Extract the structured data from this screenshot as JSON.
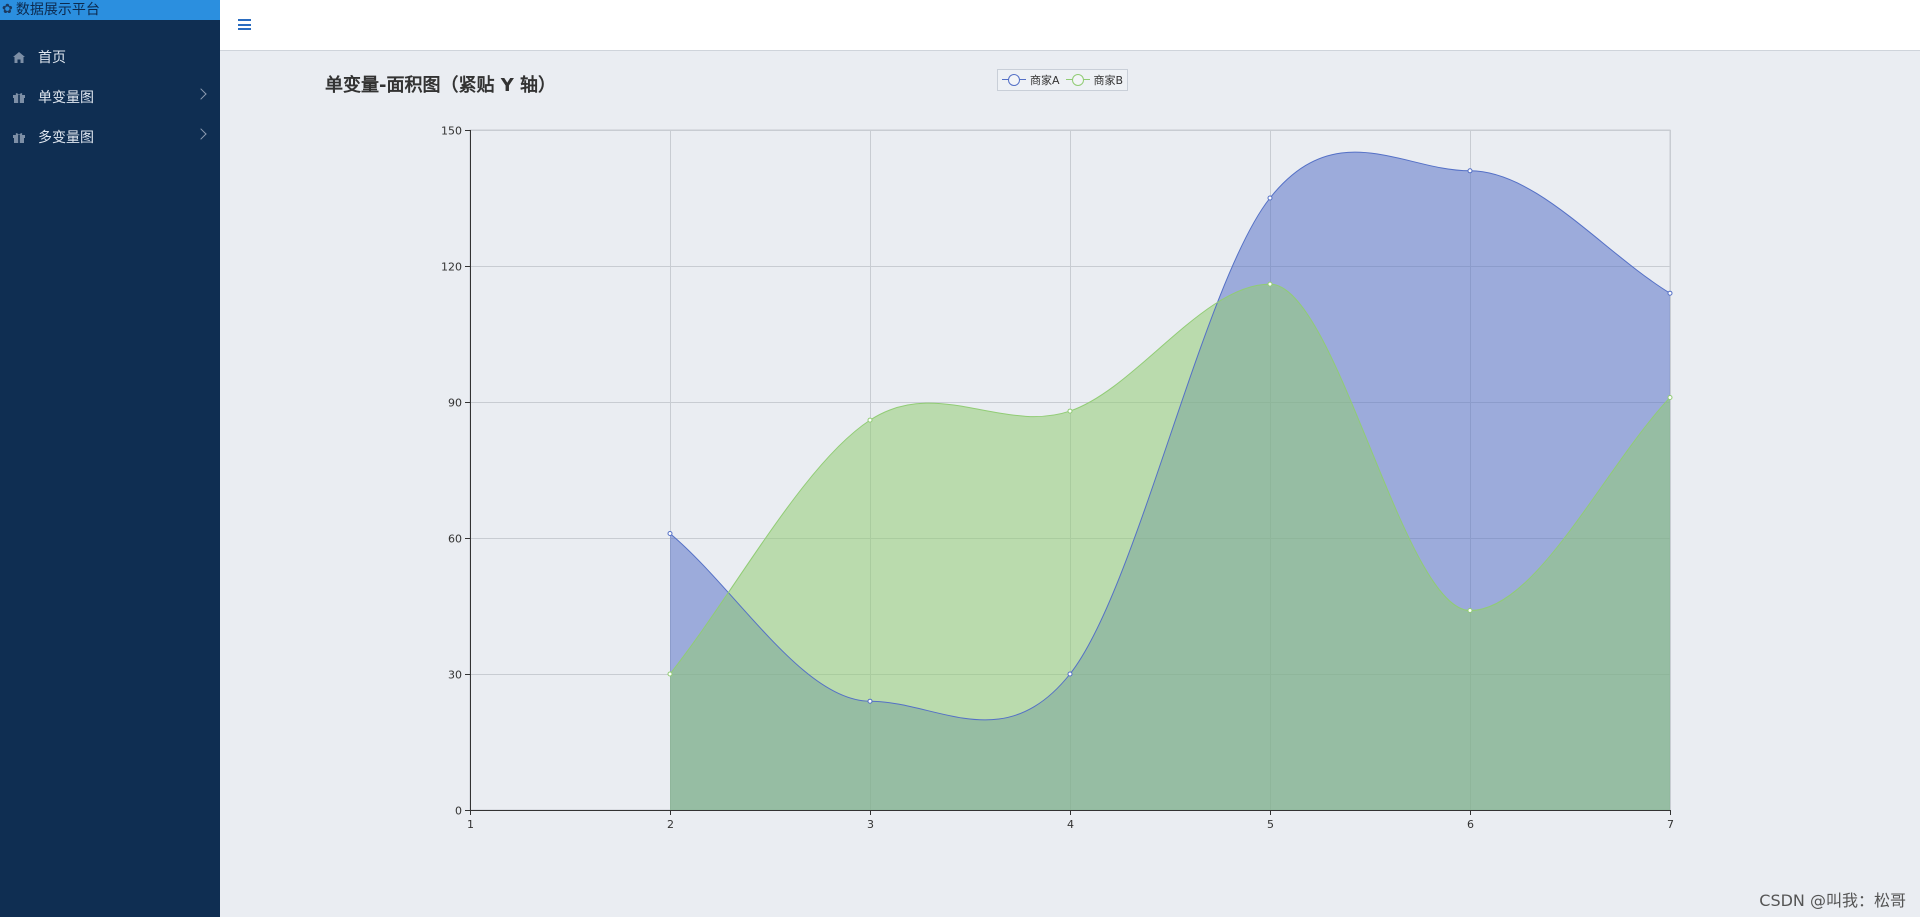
{
  "sidebar": {
    "brand": "数据展示平台",
    "items": [
      {
        "label": "首页",
        "icon": "home-icon",
        "has_submenu": false
      },
      {
        "label": "单变量图",
        "icon": "gift-icon",
        "has_submenu": true
      },
      {
        "label": "多变量图",
        "icon": "gift-icon",
        "has_submenu": true
      }
    ]
  },
  "topbar": {
    "menu_icon": "hamburger-icon"
  },
  "watermark": "CSDN @叫我：松哥",
  "colors": {
    "seriesA": "#5470c6",
    "seriesB": "#91cc75"
  },
  "chart_data": {
    "type": "area",
    "title": "单变量-面积图（紧贴 Y 轴）",
    "xlabel": "",
    "ylabel": "",
    "x_ticks": [
      1,
      2,
      3,
      4,
      5,
      6,
      7
    ],
    "y_ticks": [
      0,
      30,
      60,
      90,
      120,
      150
    ],
    "xlim": [
      1,
      7
    ],
    "ylim": [
      0,
      150
    ],
    "grid": true,
    "smooth": true,
    "legend_placement": "top-center",
    "x": [
      2,
      3,
      4,
      5,
      6,
      7
    ],
    "series": [
      {
        "name": "商家A",
        "values": [
          61,
          24,
          30,
          135,
          141,
          114
        ]
      },
      {
        "name": "商家B",
        "values": [
          30,
          86,
          88,
          116,
          44,
          91
        ]
      }
    ]
  }
}
